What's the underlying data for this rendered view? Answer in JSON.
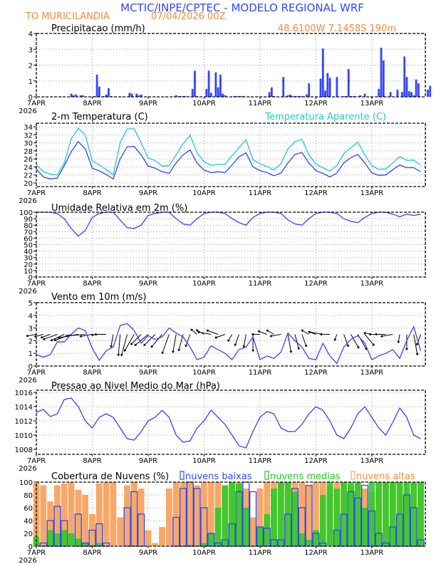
{
  "header": {
    "title": "MCTIC/INPE/CPTEC - MODELO REGIONAL WRF",
    "location": "TO MURICILANDIA",
    "run": "07/04/2026 00Z",
    "coords": "48.6100W 7.1458S 190m"
  },
  "colors": {
    "title": "#3344ff",
    "orange_text": "#f08a3c",
    "blue_line": "#3344ff",
    "cyan_line": "#22c8c8",
    "low_clouds": "#3344ff",
    "medium_clouds": "#22cc22",
    "high_clouds": "#f6a868"
  },
  "x_axis": {
    "ticks": [
      "7APR",
      "8APR",
      "9APR",
      "10APR",
      "11APR",
      "12APR",
      "13APR"
    ],
    "year": "2026"
  },
  "chart_data": [
    {
      "type": "bar",
      "title": "Precipitacao (mm/h)",
      "time_step": "1h",
      "ylim": [
        0,
        4
      ],
      "yticks": [
        "0",
        "1",
        "2",
        "3",
        "4"
      ],
      "grid": true,
      "values": [
        0,
        0,
        0,
        0,
        0,
        0,
        0,
        0,
        0,
        0,
        0,
        0,
        0,
        0,
        0,
        0.2,
        0.1,
        0.15,
        0,
        0.1,
        0.1,
        0,
        0,
        0,
        0,
        0.05,
        1.4,
        0.65,
        0,
        0.05,
        0.15,
        0.55,
        0.05,
        0,
        0,
        0,
        0,
        0,
        0,
        0,
        0.25,
        0.2,
        0,
        0.2,
        0.1,
        0.15,
        0,
        0,
        0,
        0,
        0,
        0,
        0,
        0,
        0,
        0,
        0,
        0,
        0,
        0,
        0.1,
        0.05,
        0.05,
        0.05,
        0.05,
        0,
        0,
        0.5,
        1.65,
        0.05,
        0,
        0,
        0,
        0.5,
        1.65,
        0.25,
        0,
        1.55,
        0.6,
        1.4,
        0.2,
        0.1,
        0,
        0,
        0,
        0.05,
        0.05,
        0.05,
        0.05,
        0.05,
        0,
        0,
        0,
        0,
        0,
        0,
        0,
        0,
        0,
        0,
        0.3,
        0.6,
        0.05,
        0,
        0,
        0,
        1.25,
        0,
        0.1,
        0.15,
        0.05,
        0.05,
        0.05,
        0.05,
        0.05,
        0,
        0.15,
        0.85,
        0,
        0,
        0,
        0,
        1.15,
        3.05,
        0.4,
        1.5,
        1.2,
        0,
        0,
        1.25,
        0,
        0,
        0.05,
        0.05,
        1.75,
        0.05,
        0.05,
        0.05,
        0,
        0.1,
        0,
        0.2,
        0,
        0,
        0,
        0,
        0,
        0.5,
        3.1,
        2.3,
        0,
        0,
        0.3,
        0,
        0,
        0.45,
        0,
        0.3,
        2.55,
        1.25,
        0.35,
        0.3,
        0.1,
        1.1,
        0.85,
        0,
        0,
        0,
        0.45,
        0.7
      ]
    },
    {
      "type": "line",
      "title": "2-m Temperatura (C)",
      "time_step": "3h",
      "ylim": [
        19.1,
        34.9
      ],
      "yticks": [
        "20",
        "22",
        "24",
        "26",
        "28",
        "30",
        "32",
        "34"
      ],
      "grid": true,
      "series": [
        {
          "name": "",
          "color": "#3344ff",
          "values": [
            23.5,
            21.5,
            21,
            21.2,
            24.3,
            27.8,
            30.3,
            28.5,
            23.7,
            23,
            22.1,
            21,
            26,
            29,
            29.1,
            27,
            24.2,
            23.7,
            22.8,
            22.4,
            25,
            27,
            28.2,
            25,
            23.2,
            22.6,
            22.8,
            22.6,
            24.5,
            26.5,
            27.5,
            24,
            23.1,
            22.6,
            21.8,
            22.5,
            25,
            27.1,
            27.6,
            25,
            23.1,
            22.4,
            21.5,
            22.5,
            25,
            26.3,
            27.1,
            25,
            22.5,
            21.9,
            22,
            23.3,
            24.5,
            23.8,
            23.8,
            22.8
          ]
        },
        {
          "name": "Temperatura Aparente (C)",
          "color": "#22c8c8",
          "values": [
            24.5,
            22.8,
            22.2,
            22,
            25,
            31,
            33.6,
            32,
            25.5,
            24.5,
            23.3,
            22,
            30,
            33.5,
            33.5,
            30,
            26.2,
            25.6,
            24.2,
            24.3,
            27,
            29.8,
            31.9,
            27.5,
            25.3,
            24.4,
            24.7,
            24.6,
            26.8,
            28.8,
            30.8,
            25.8,
            24.8,
            24.1,
            23.2,
            24.8,
            28.5,
            30.3,
            30.9,
            27,
            24.7,
            23.8,
            23,
            24.3,
            27.3,
            28.8,
            30.2,
            27,
            24.3,
            23.4,
            23.5,
            25,
            26.6,
            25.6,
            25.7,
            24.5
          ]
        }
      ]
    },
    {
      "type": "line",
      "title": "Umidade Relativa em 2m (%)",
      "time_step": "3h",
      "ylim": [
        0,
        100
      ],
      "yticks": [
        "0",
        "10",
        "20",
        "30",
        "40",
        "50",
        "60",
        "70",
        "80",
        "90",
        "100"
      ],
      "grid": true,
      "series": [
        {
          "name": "",
          "color": "#3344ff",
          "values": [
            100,
            100,
            100,
            98,
            90,
            75,
            63,
            72,
            92,
            98,
            100,
            100,
            88,
            76,
            75,
            80,
            95,
            98,
            100,
            100,
            90,
            82,
            80,
            90,
            98,
            100,
            100,
            98,
            90,
            84,
            80,
            92,
            98,
            100,
            100,
            98,
            88,
            82,
            80,
            90,
            98,
            100,
            100,
            98,
            90,
            86,
            84,
            92,
            98,
            100,
            100,
            97,
            93,
            97,
            95,
            97
          ]
        }
      ]
    },
    {
      "type": "line",
      "title": "Vento em 10m (m/s)",
      "time_step": "3h",
      "ylim": [
        0,
        5
      ],
      "yticks": [
        "0",
        "1",
        "2",
        "3",
        "4",
        "5"
      ],
      "grid": true,
      "series": [
        {
          "name": "",
          "color": "#3344ff",
          "values": [
            0.9,
            0.7,
            0.9,
            1.9,
            1.9,
            2.5,
            3.0,
            2.8,
            1.4,
            0.45,
            1.2,
            1.5,
            3.2,
            3.35,
            2.8,
            1.8,
            2.4,
            2.1,
            2.3,
            3.0,
            2.6,
            2.3,
            1.5,
            0.5,
            0.7,
            1.6,
            1.3,
            1.0,
            0.5,
            1.3,
            1.5,
            2.3,
            0.5,
            0.8,
            0.6,
            1.1,
            2.6,
            2.0,
            1.5,
            0.6,
            0.5,
            1.8,
            0.8,
            0.2,
            1.5,
            2.1,
            2.4,
            1.8,
            0.5,
            0.8,
            1.0,
            1.3,
            0.6,
            2.0,
            3.1,
            1.2
          ]
        }
      ],
      "wind_direction_deg": [
        80,
        75,
        70,
        70,
        65,
        70,
        80,
        85,
        80,
        85,
        90,
        10,
        5,
        15,
        30,
        45,
        50,
        45,
        40,
        20,
        10,
        15,
        20,
        130,
        120,
        100,
        110,
        70,
        30,
        20,
        10,
        0,
        90,
        110,
        120,
        80,
        350,
        345,
        340,
        120,
        110,
        100,
        90,
        20,
        340,
        330,
        330,
        320,
        100,
        90,
        90,
        80,
        10,
        0,
        350,
        20
      ]
    },
    {
      "type": "line",
      "title": "Pressao ao Nivel Medio do Mar (hPa)",
      "time_step": "3h",
      "ylim": [
        1007.3,
        1016.3
      ],
      "yticks": [
        "1008",
        "1010",
        "1012",
        "1014",
        "1016"
      ],
      "grid": true,
      "series": [
        {
          "name": "",
          "color": "#3344ff",
          "values": [
            1013.2,
            1013.6,
            1012.6,
            1013.0,
            1015.0,
            1015.2,
            1014.0,
            1012.0,
            1011.0,
            1012.5,
            1013.0,
            1012.5,
            1011.0,
            1009.5,
            1009.3,
            1010.5,
            1012.0,
            1012.5,
            1013.5,
            1012.5,
            1010.0,
            1009.0,
            1009.2,
            1011.0,
            1012.0,
            1013.5,
            1012.5,
            1011.5,
            1010.0,
            1008.5,
            1008.2,
            1010.5,
            1012.5,
            1013.3,
            1013.0,
            1011.0,
            1010.5,
            1010.5,
            1011.5,
            1013.0,
            1014.0,
            1013.5,
            1012.0,
            1010.0,
            1009.5,
            1011.0,
            1013.0,
            1014.0,
            1012.5,
            1011.0,
            1010.0,
            1011.8,
            1013.8,
            1012.5,
            1010.0,
            1009.5
          ]
        }
      ]
    },
    {
      "type": "bar",
      "title": "Cobertura de Nuvens (%)",
      "time_step": "3h",
      "ylim": [
        0,
        100
      ],
      "yticks": [
        "0",
        "20",
        "40",
        "60",
        "80",
        "100"
      ],
      "grid": true,
      "legend": "top",
      "series": [
        {
          "name": "nuvens altas",
          "color": "#f6a868",
          "values": [
            100,
            95,
            70,
            95,
            98,
            100,
            88,
            80,
            50,
            98,
            100,
            100,
            45,
            95,
            100,
            90,
            25,
            5,
            30,
            90,
            100,
            100,
            100,
            95,
            100,
            100,
            100,
            95,
            100,
            100,
            90,
            45,
            90,
            100,
            100,
            100,
            100,
            100,
            100,
            95,
            100,
            100,
            95,
            100,
            100,
            95,
            100,
            90,
            85,
            100,
            100,
            100,
            100,
            100,
            100,
            100
          ]
        },
        {
          "name": "nuvens medias",
          "color": "#22cc22",
          "values": [
            15,
            0,
            25,
            20,
            25,
            20,
            12,
            5,
            2,
            5,
            0,
            0,
            0,
            0,
            0,
            0,
            0,
            0,
            0,
            0,
            0,
            0,
            2,
            0,
            5,
            20,
            60,
            95,
            100,
            98,
            60,
            0,
            30,
            50,
            90,
            100,
            100,
            85,
            20,
            10,
            25,
            80,
            100,
            90,
            100,
            100,
            100,
            60,
            100,
            100,
            100,
            100,
            100,
            100,
            100,
            100
          ]
        },
        {
          "name": "nuvens baixas",
          "color": "#3344ff",
          "values": [
            0,
            5,
            40,
            62,
            40,
            0,
            50,
            5,
            25,
            35,
            5,
            0,
            0,
            60,
            85,
            50,
            0,
            0,
            0,
            0,
            45,
            90,
            100,
            90,
            60,
            20,
            5,
            10,
            35,
            85,
            100,
            85,
            30,
            28,
            10,
            10,
            50,
            90,
            60,
            95,
            20,
            5,
            0,
            25,
            50,
            85,
            75,
            95,
            55,
            20,
            5,
            30,
            50,
            80,
            60,
            10
          ]
        }
      ]
    }
  ]
}
